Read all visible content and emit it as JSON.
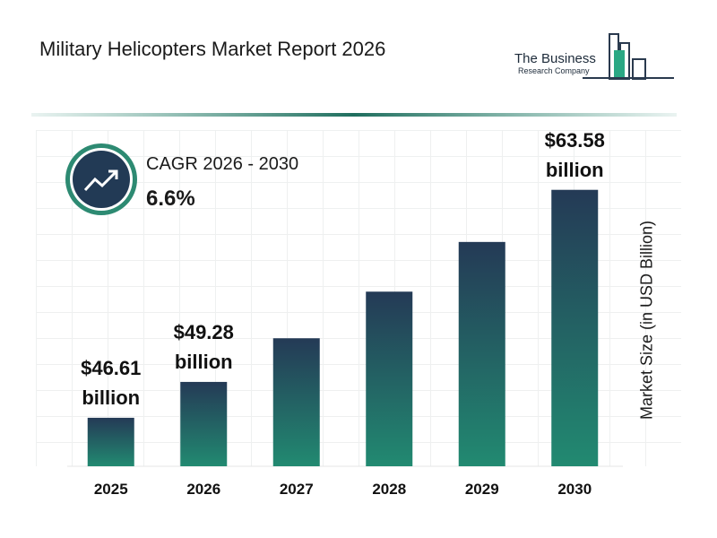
{
  "chart_data": {
    "type": "bar",
    "title": "Military Helicopters Market Report 2026",
    "y_label": "Market Size (in USD Billion)",
    "annotations": [
      "CAGR 2026 - 2030",
      "6.6%"
    ],
    "categories": [
      "2025",
      "2026",
      "2027",
      "2028",
      "2029",
      "2030"
    ],
    "values": [
      46.61,
      49.28,
      52.53,
      56.0,
      59.7,
      63.58
    ],
    "value_labels": [
      "$46.61\nbillion",
      "$49.28\nbillion",
      null,
      null,
      null,
      "$63.58\nbillion"
    ],
    "gradient": [
      "#243a56",
      "#228a71"
    ],
    "ylim": [
      43,
      67.7
    ]
  },
  "logo": {
    "line1": "The Business",
    "line2": "Research Company"
  }
}
